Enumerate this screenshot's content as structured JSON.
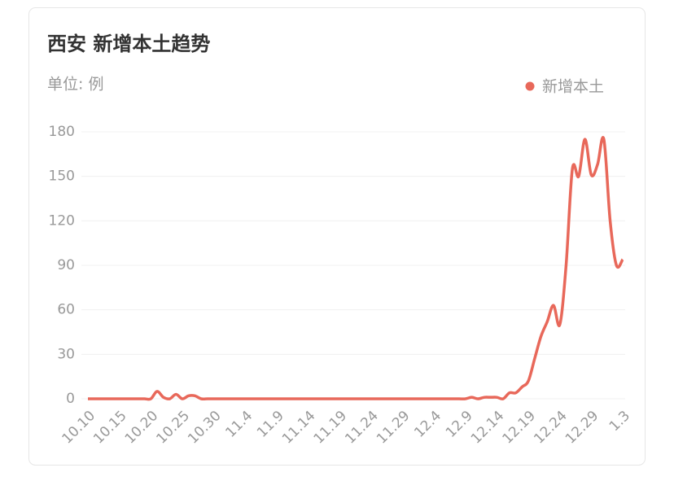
{
  "chart_data": {
    "type": "line",
    "title": "西安 新增本土趋势",
    "subtitle": "单位: 例",
    "categories": [
      "10.10",
      null,
      null,
      null,
      null,
      "10.15",
      null,
      null,
      null,
      null,
      "10.20",
      null,
      null,
      null,
      null,
      "10.25",
      null,
      null,
      null,
      null,
      "10.30",
      null,
      null,
      null,
      null,
      "11.4",
      null,
      null,
      null,
      null,
      "11.9",
      null,
      null,
      null,
      null,
      "11.14",
      null,
      null,
      null,
      null,
      "11.19",
      null,
      null,
      null,
      null,
      "11.24",
      null,
      null,
      null,
      null,
      "11.29",
      null,
      null,
      null,
      null,
      "12.4",
      null,
      null,
      null,
      null,
      "12.9",
      null,
      null,
      null,
      null,
      "12.14",
      null,
      null,
      null,
      null,
      "12.19",
      null,
      null,
      null,
      null,
      "12.24",
      null,
      null,
      null,
      null,
      "12.29",
      null,
      null,
      null,
      null,
      "1.3"
    ],
    "series": [
      {
        "name": "新增本土",
        "color": "#e8685a",
        "values": [
          0,
          0,
          0,
          0,
          0,
          0,
          0,
          0,
          0,
          0,
          0,
          5,
          1,
          0,
          3,
          0,
          2,
          2,
          0,
          0,
          0,
          0,
          0,
          0,
          0,
          0,
          0,
          0,
          0,
          0,
          0,
          0,
          0,
          0,
          0,
          0,
          0,
          0,
          0,
          0,
          0,
          0,
          0,
          0,
          0,
          0,
          0,
          0,
          0,
          0,
          0,
          0,
          0,
          0,
          0,
          0,
          0,
          0,
          0,
          0,
          0,
          1,
          0,
          1,
          1,
          1,
          0,
          4,
          4,
          8,
          12,
          27,
          42,
          52,
          63,
          50,
          90,
          155,
          150,
          175,
          151,
          158,
          175,
          120,
          90,
          94
        ]
      }
    ],
    "ylim": [
      0,
      180
    ],
    "yticks": [
      0,
      30,
      60,
      90,
      120,
      150,
      180
    ],
    "grid": true,
    "legend": "top-right"
  }
}
